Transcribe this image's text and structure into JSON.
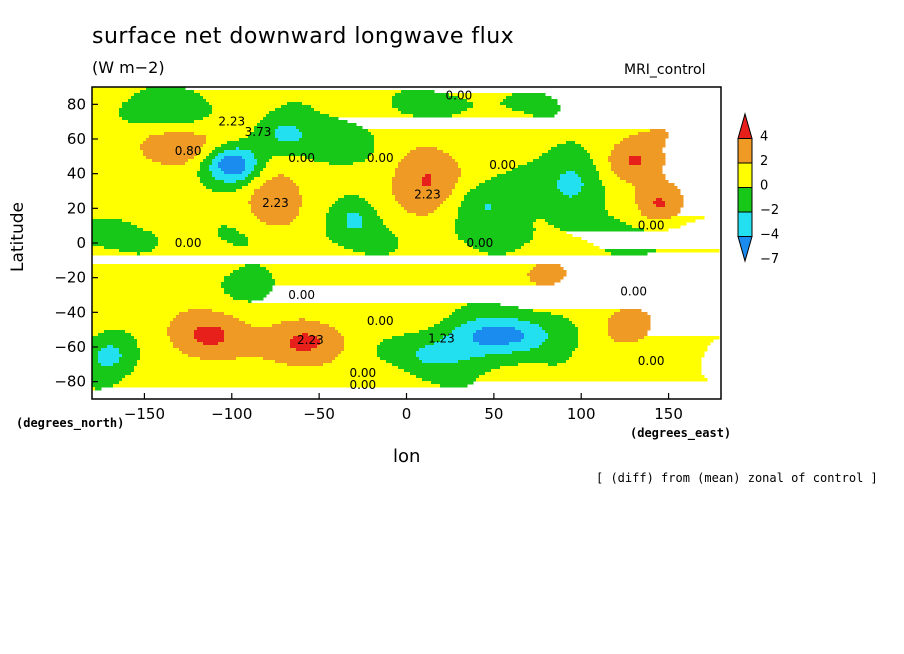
{
  "header": {
    "title": "surface net downward longwave flux",
    "units": "(W m−2)",
    "run_label": "MRI_control"
  },
  "footer_note": "[ (diff) from (mean) zonal of control ]",
  "colors": {
    "red": "#e8201c",
    "orange": "#f09a26",
    "yellow": "#ffff00",
    "green": "#18c818",
    "cyan": "#22e0f0",
    "blue": "#1a8cf0"
  },
  "chart_data": {
    "type": "heatmap",
    "subtype": "filled contour map",
    "x": {
      "label": "lon",
      "unit_label": "(degrees_east)",
      "range": [
        -180,
        180
      ],
      "ticks": [
        -150,
        -100,
        -50,
        0,
        50,
        100,
        150
      ],
      "tick_labels": [
        "−150",
        "−100",
        "−50",
        "0",
        "50",
        "100",
        "150"
      ]
    },
    "y": {
      "label": "Latitude",
      "unit_label": "(degrees_north)",
      "range": [
        -90,
        90
      ],
      "ticks": [
        -80,
        -60,
        -40,
        -20,
        0,
        20,
        40,
        60,
        80
      ],
      "tick_labels": [
        "−80",
        "−60",
        "−40",
        "−20",
        "0",
        "20",
        "40",
        "60",
        "80"
      ]
    },
    "colorbar": {
      "levels": [
        4,
        2,
        0,
        -2,
        -4,
        -7
      ],
      "level_labels": [
        "4",
        "2",
        "0",
        "−2",
        "−4",
        "−7"
      ],
      "colors": [
        "#e8201c",
        "#f09a26",
        "#ffff00",
        "#18c818",
        "#22e0f0",
        "#1a8cf0"
      ]
    },
    "contour_labels": [
      {
        "lon": -100,
        "lat": 70,
        "text": "2.23"
      },
      {
        "lon": -85,
        "lat": 64,
        "text": "3.73"
      },
      {
        "lon": -125,
        "lat": 53,
        "text": "0.80"
      },
      {
        "lon": -60,
        "lat": 49,
        "text": "0.00"
      },
      {
        "lon": -15,
        "lat": 49,
        "text": "0.00"
      },
      {
        "lon": 30,
        "lat": 85,
        "text": "0.00"
      },
      {
        "lon": 55,
        "lat": 45,
        "text": "0.00"
      },
      {
        "lon": -75,
        "lat": 23,
        "text": "2.23"
      },
      {
        "lon": 12,
        "lat": 28,
        "text": "2.23"
      },
      {
        "lon": 140,
        "lat": 10,
        "text": "0.00"
      },
      {
        "lon": -125,
        "lat": 0,
        "text": "0.00"
      },
      {
        "lon": 42,
        "lat": 0,
        "text": "0.00"
      },
      {
        "lon": -60,
        "lat": -30,
        "text": "0.00"
      },
      {
        "lon": 130,
        "lat": -28,
        "text": "0.00"
      },
      {
        "lon": -15,
        "lat": -45,
        "text": "0.00"
      },
      {
        "lon": -55,
        "lat": -56,
        "text": "2.23"
      },
      {
        "lon": 20,
        "lat": -55,
        "text": "1.23"
      },
      {
        "lon": 140,
        "lat": -68,
        "text": "0.00"
      },
      {
        "lon": -25,
        "lat": -75,
        "text": "0.00"
      },
      {
        "lon": -25,
        "lat": -82,
        "text": "0.00"
      }
    ]
  }
}
